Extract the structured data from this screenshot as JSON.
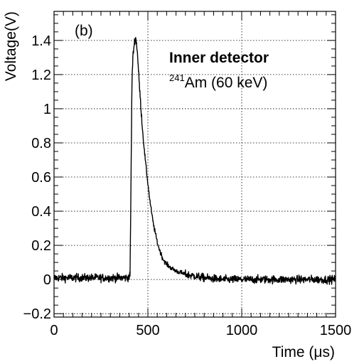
{
  "chart_data": {
    "type": "line",
    "panel_label": "(b)",
    "xlabel_prefix": "Time (",
    "xlabel_unit": "μs",
    "xlabel_suffix": ")",
    "ylabel": "Voltage(V)",
    "xlim": [
      0,
      1500
    ],
    "ylim": [
      -0.22,
      1.57
    ],
    "x_ticks": [
      0,
      500,
      1000,
      1500
    ],
    "x_tick_labels": [
      "0",
      "500",
      "1000",
      "1500"
    ],
    "y_ticks": [
      -0.2,
      0,
      0.2,
      0.4,
      0.6,
      0.8,
      1,
      1.2,
      1.4
    ],
    "y_tick_labels": [
      "−0.2",
      "0",
      "0.2",
      "0.4",
      "0.6",
      "0.8",
      "1",
      "1.2",
      "1.4"
    ],
    "grid": true,
    "annotation_title": "Inner detector",
    "annotation_isotope_mass": "241",
    "annotation_isotope_text": "Am (60 keV)",
    "series": [
      {
        "color": "#000000",
        "noise_amplitude": 0.02,
        "baseline": 0.01,
        "x": [
          0,
          100,
          200,
          300,
          390,
          405,
          410,
          415,
          420,
          425,
          430,
          435,
          440,
          445,
          450,
          460,
          470,
          480,
          490,
          500,
          510,
          520,
          530,
          540,
          550,
          560,
          570,
          580,
          600,
          620,
          650,
          700,
          750,
          800,
          900,
          1000,
          1100,
          1200,
          1300,
          1400,
          1500
        ],
        "y": [
          0.01,
          0.01,
          0.01,
          0.01,
          0.01,
          0.02,
          0.55,
          1.15,
          1.3,
          1.36,
          1.4,
          1.41,
          1.38,
          1.32,
          1.22,
          1.05,
          0.9,
          0.77,
          0.66,
          0.56,
          0.47,
          0.39,
          0.32,
          0.27,
          0.22,
          0.18,
          0.15,
          0.12,
          0.09,
          0.07,
          0.05,
          0.03,
          0.02,
          0.01,
          0.0,
          0.0,
          0.0,
          0.0,
          0.0,
          0.0,
          0.0
        ]
      }
    ]
  }
}
